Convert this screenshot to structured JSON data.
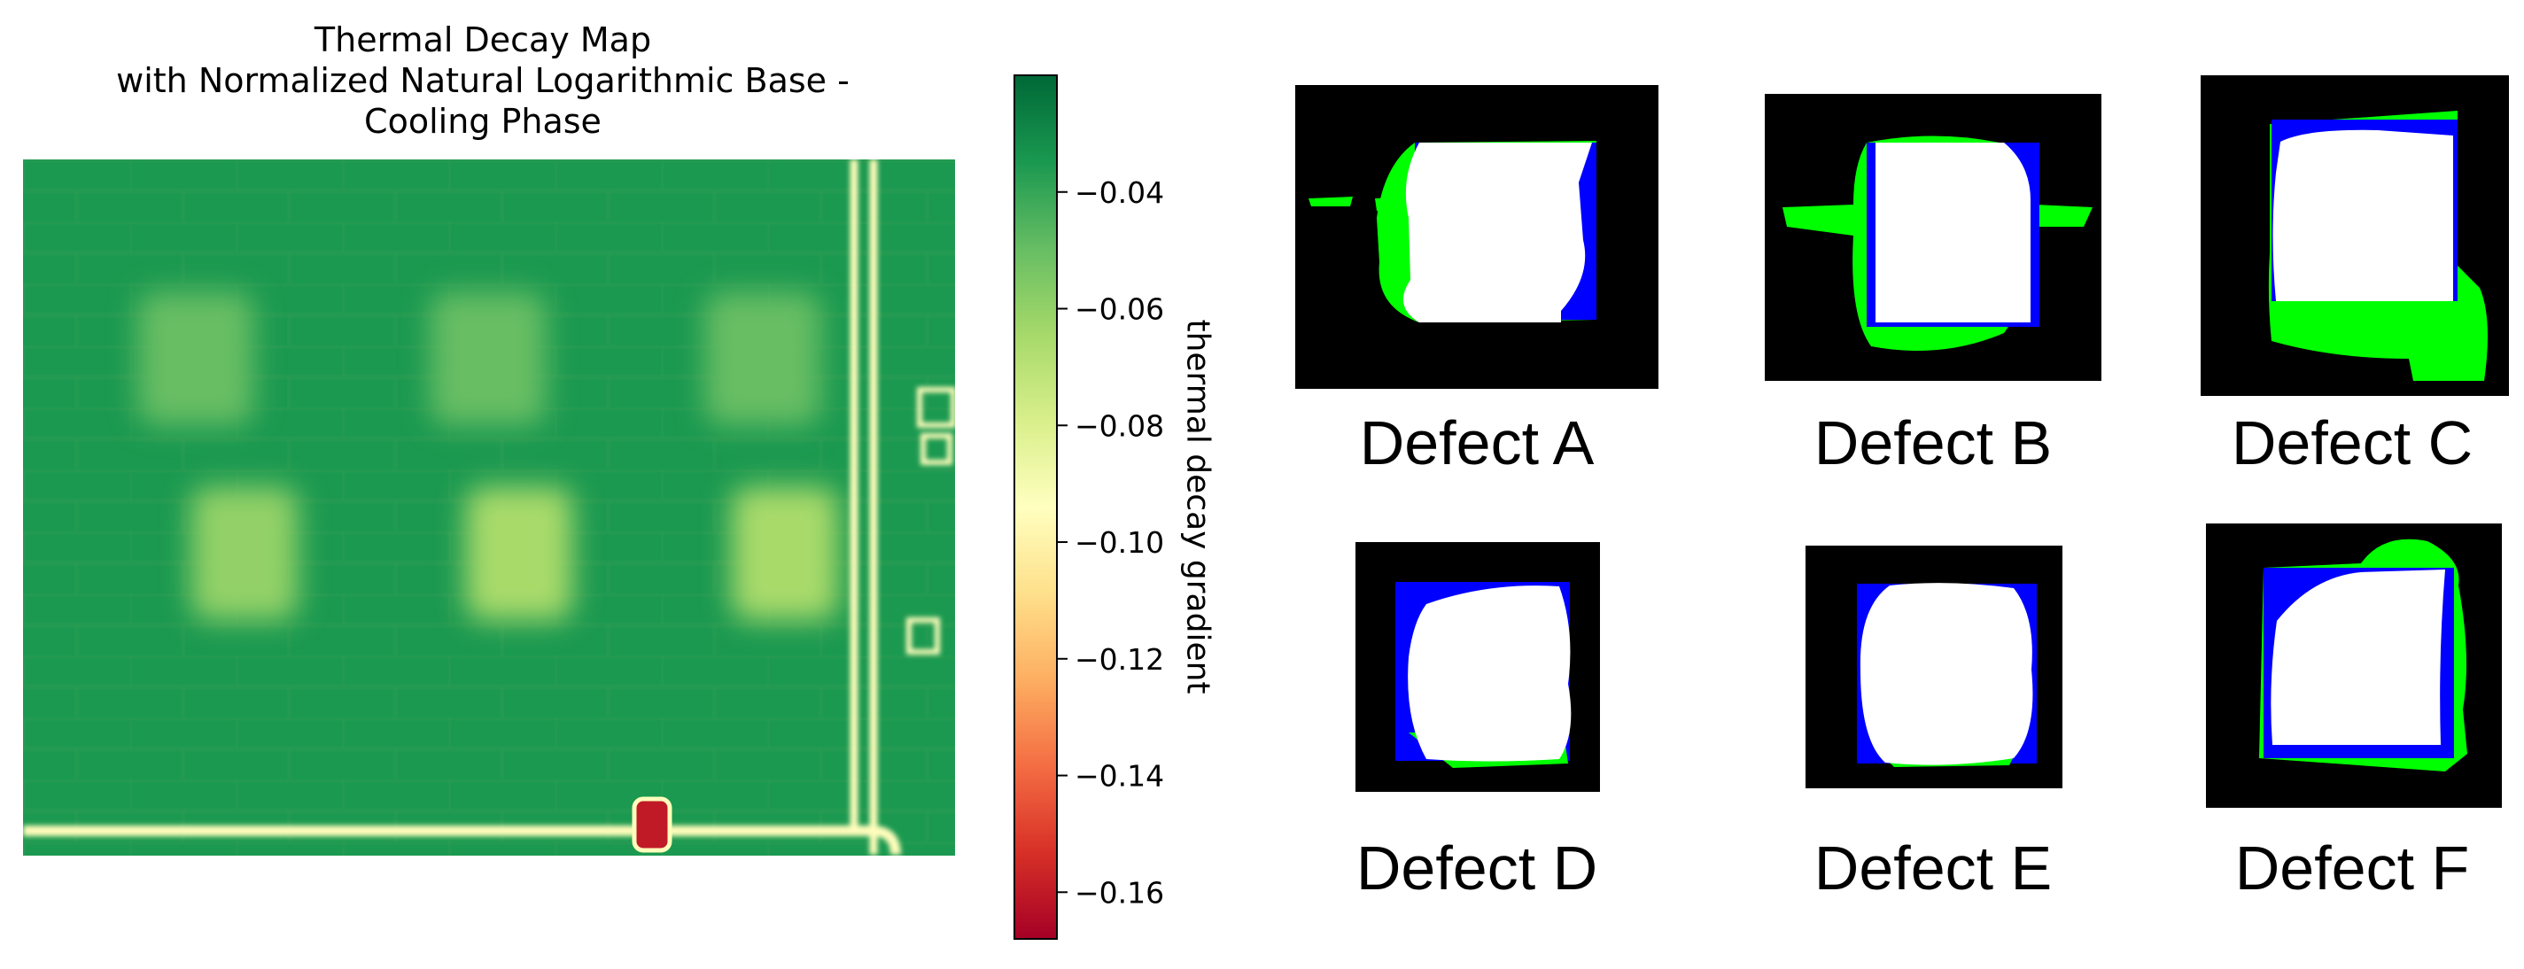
{
  "heatmap": {
    "title": "Thermal Decay Map\nwith Normalized Natural Logarithmic Base -\nCooling Phase",
    "colorbar_label": "thermal decay gradient",
    "colormap": [
      "#a50026",
      "#d73027",
      "#f46d43",
      "#fdae61",
      "#fee08b",
      "#ffffbf",
      "#d9ef8b",
      "#a6d96a",
      "#66bd63",
      "#1a9850",
      "#006837"
    ]
  },
  "chart_data": {
    "type": "heatmap",
    "title": "Thermal Decay Map\nwith Normalized Natural Logarithmic Base -\nCooling Phase",
    "colorbar": {
      "label": "thermal decay gradient",
      "range": [
        -0.168,
        -0.02
      ],
      "ticks": [
        -0.04,
        -0.06,
        -0.08,
        -0.1,
        -0.12,
        -0.14,
        -0.16
      ],
      "tick_labels": [
        "−0.04",
        "−0.06",
        "−0.08",
        "−0.10",
        "−0.12",
        "−0.14",
        "−0.16"
      ],
      "colormap": "RdYlGn"
    },
    "background_value": -0.035,
    "defect_regions": [
      {
        "name": "upper-left",
        "value": -0.05
      },
      {
        "name": "upper-middle",
        "value": -0.05
      },
      {
        "name": "upper-right",
        "value": -0.05
      },
      {
        "name": "lower-left",
        "value": -0.06
      },
      {
        "name": "lower-middle",
        "value": -0.065
      },
      {
        "name": "lower-right",
        "value": -0.065
      }
    ],
    "pipe_value": -0.095,
    "hotspot_value": -0.16
  },
  "defects": [
    {
      "label": "Defect A"
    },
    {
      "label": "Defect B"
    },
    {
      "label": "Defect C"
    },
    {
      "label": "Defect D"
    },
    {
      "label": "Defect E"
    },
    {
      "label": "Defect F"
    }
  ],
  "mask_colors": {
    "background": "#000000",
    "region": "#0000ff",
    "detected": "#ffffff",
    "spill": "#00ff00"
  }
}
